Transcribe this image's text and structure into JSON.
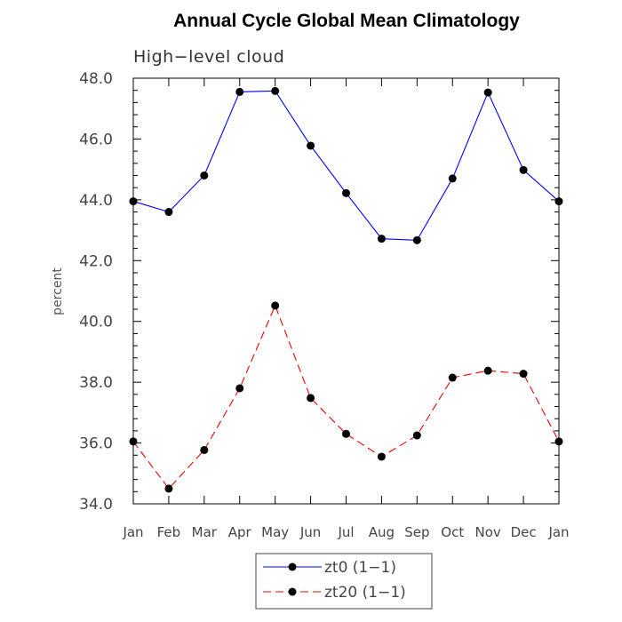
{
  "chart_data": {
    "type": "line",
    "title": "Annual Cycle Global Mean Climatology",
    "subtitle": "High−level cloud",
    "xlabel": "",
    "ylabel": "percent",
    "categories": [
      "Jan",
      "Feb",
      "Mar",
      "Apr",
      "May",
      "Jun",
      "Jul",
      "Aug",
      "Sep",
      "Oct",
      "Nov",
      "Dec",
      "Jan"
    ],
    "ylim": [
      34.0,
      48.0
    ],
    "yticks": [
      "34.0",
      "36.0",
      "38.0",
      "40.0",
      "42.0",
      "44.0",
      "46.0",
      "48.0"
    ],
    "legend_position": "bottom-center",
    "series": [
      {
        "name": "zt0 (1−1)",
        "color": "#0000ff",
        "line_style": "solid",
        "values": [
          43.95,
          43.6,
          44.8,
          47.55,
          47.58,
          45.78,
          44.22,
          42.72,
          42.67,
          44.7,
          47.53,
          44.98,
          43.95
        ]
      },
      {
        "name": "zt20 (1−1)",
        "color": "#ee0000",
        "line_style": "dashed",
        "values": [
          36.05,
          34.5,
          35.77,
          37.8,
          40.52,
          37.48,
          36.3,
          35.55,
          36.25,
          38.15,
          38.38,
          38.28,
          36.05
        ]
      }
    ]
  }
}
